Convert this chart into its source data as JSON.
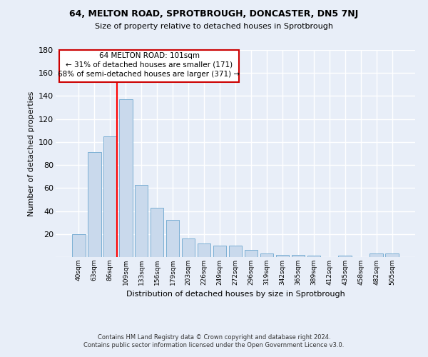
{
  "title": "64, MELTON ROAD, SPROTBROUGH, DONCASTER, DN5 7NJ",
  "subtitle": "Size of property relative to detached houses in Sprotbrough",
  "xlabel": "Distribution of detached houses by size in Sprotbrough",
  "ylabel": "Number of detached properties",
  "categories": [
    "40sqm",
    "63sqm",
    "86sqm",
    "109sqm",
    "133sqm",
    "156sqm",
    "179sqm",
    "203sqm",
    "226sqm",
    "249sqm",
    "272sqm",
    "296sqm",
    "319sqm",
    "342sqm",
    "365sqm",
    "389sqm",
    "412sqm",
    "435sqm",
    "458sqm",
    "482sqm",
    "505sqm"
  ],
  "values": [
    20,
    91,
    105,
    137,
    63,
    43,
    32,
    16,
    12,
    10,
    10,
    6,
    3,
    2,
    2,
    1,
    0,
    1,
    0,
    3,
    3
  ],
  "bar_color": "#c9d9ec",
  "bar_edge_color": "#7bafd4",
  "background_color": "#e8eef8",
  "grid_color": "#ffffff",
  "annotation_text_line1": "64 MELTON ROAD: 101sqm",
  "annotation_text_line2": "← 31% of detached houses are smaller (171)",
  "annotation_text_line3": "68% of semi-detached houses are larger (371) →",
  "annotation_box_color": "#ffffff",
  "annotation_box_edge_color": "#cc0000",
  "footer_line1": "Contains HM Land Registry data © Crown copyright and database right 2024.",
  "footer_line2": "Contains public sector information licensed under the Open Government Licence v3.0.",
  "ylim": [
    0,
    180
  ],
  "yticks": [
    0,
    20,
    40,
    60,
    80,
    100,
    120,
    140,
    160,
    180
  ],
  "red_line_bin": 2,
  "bar_width": 0.85
}
